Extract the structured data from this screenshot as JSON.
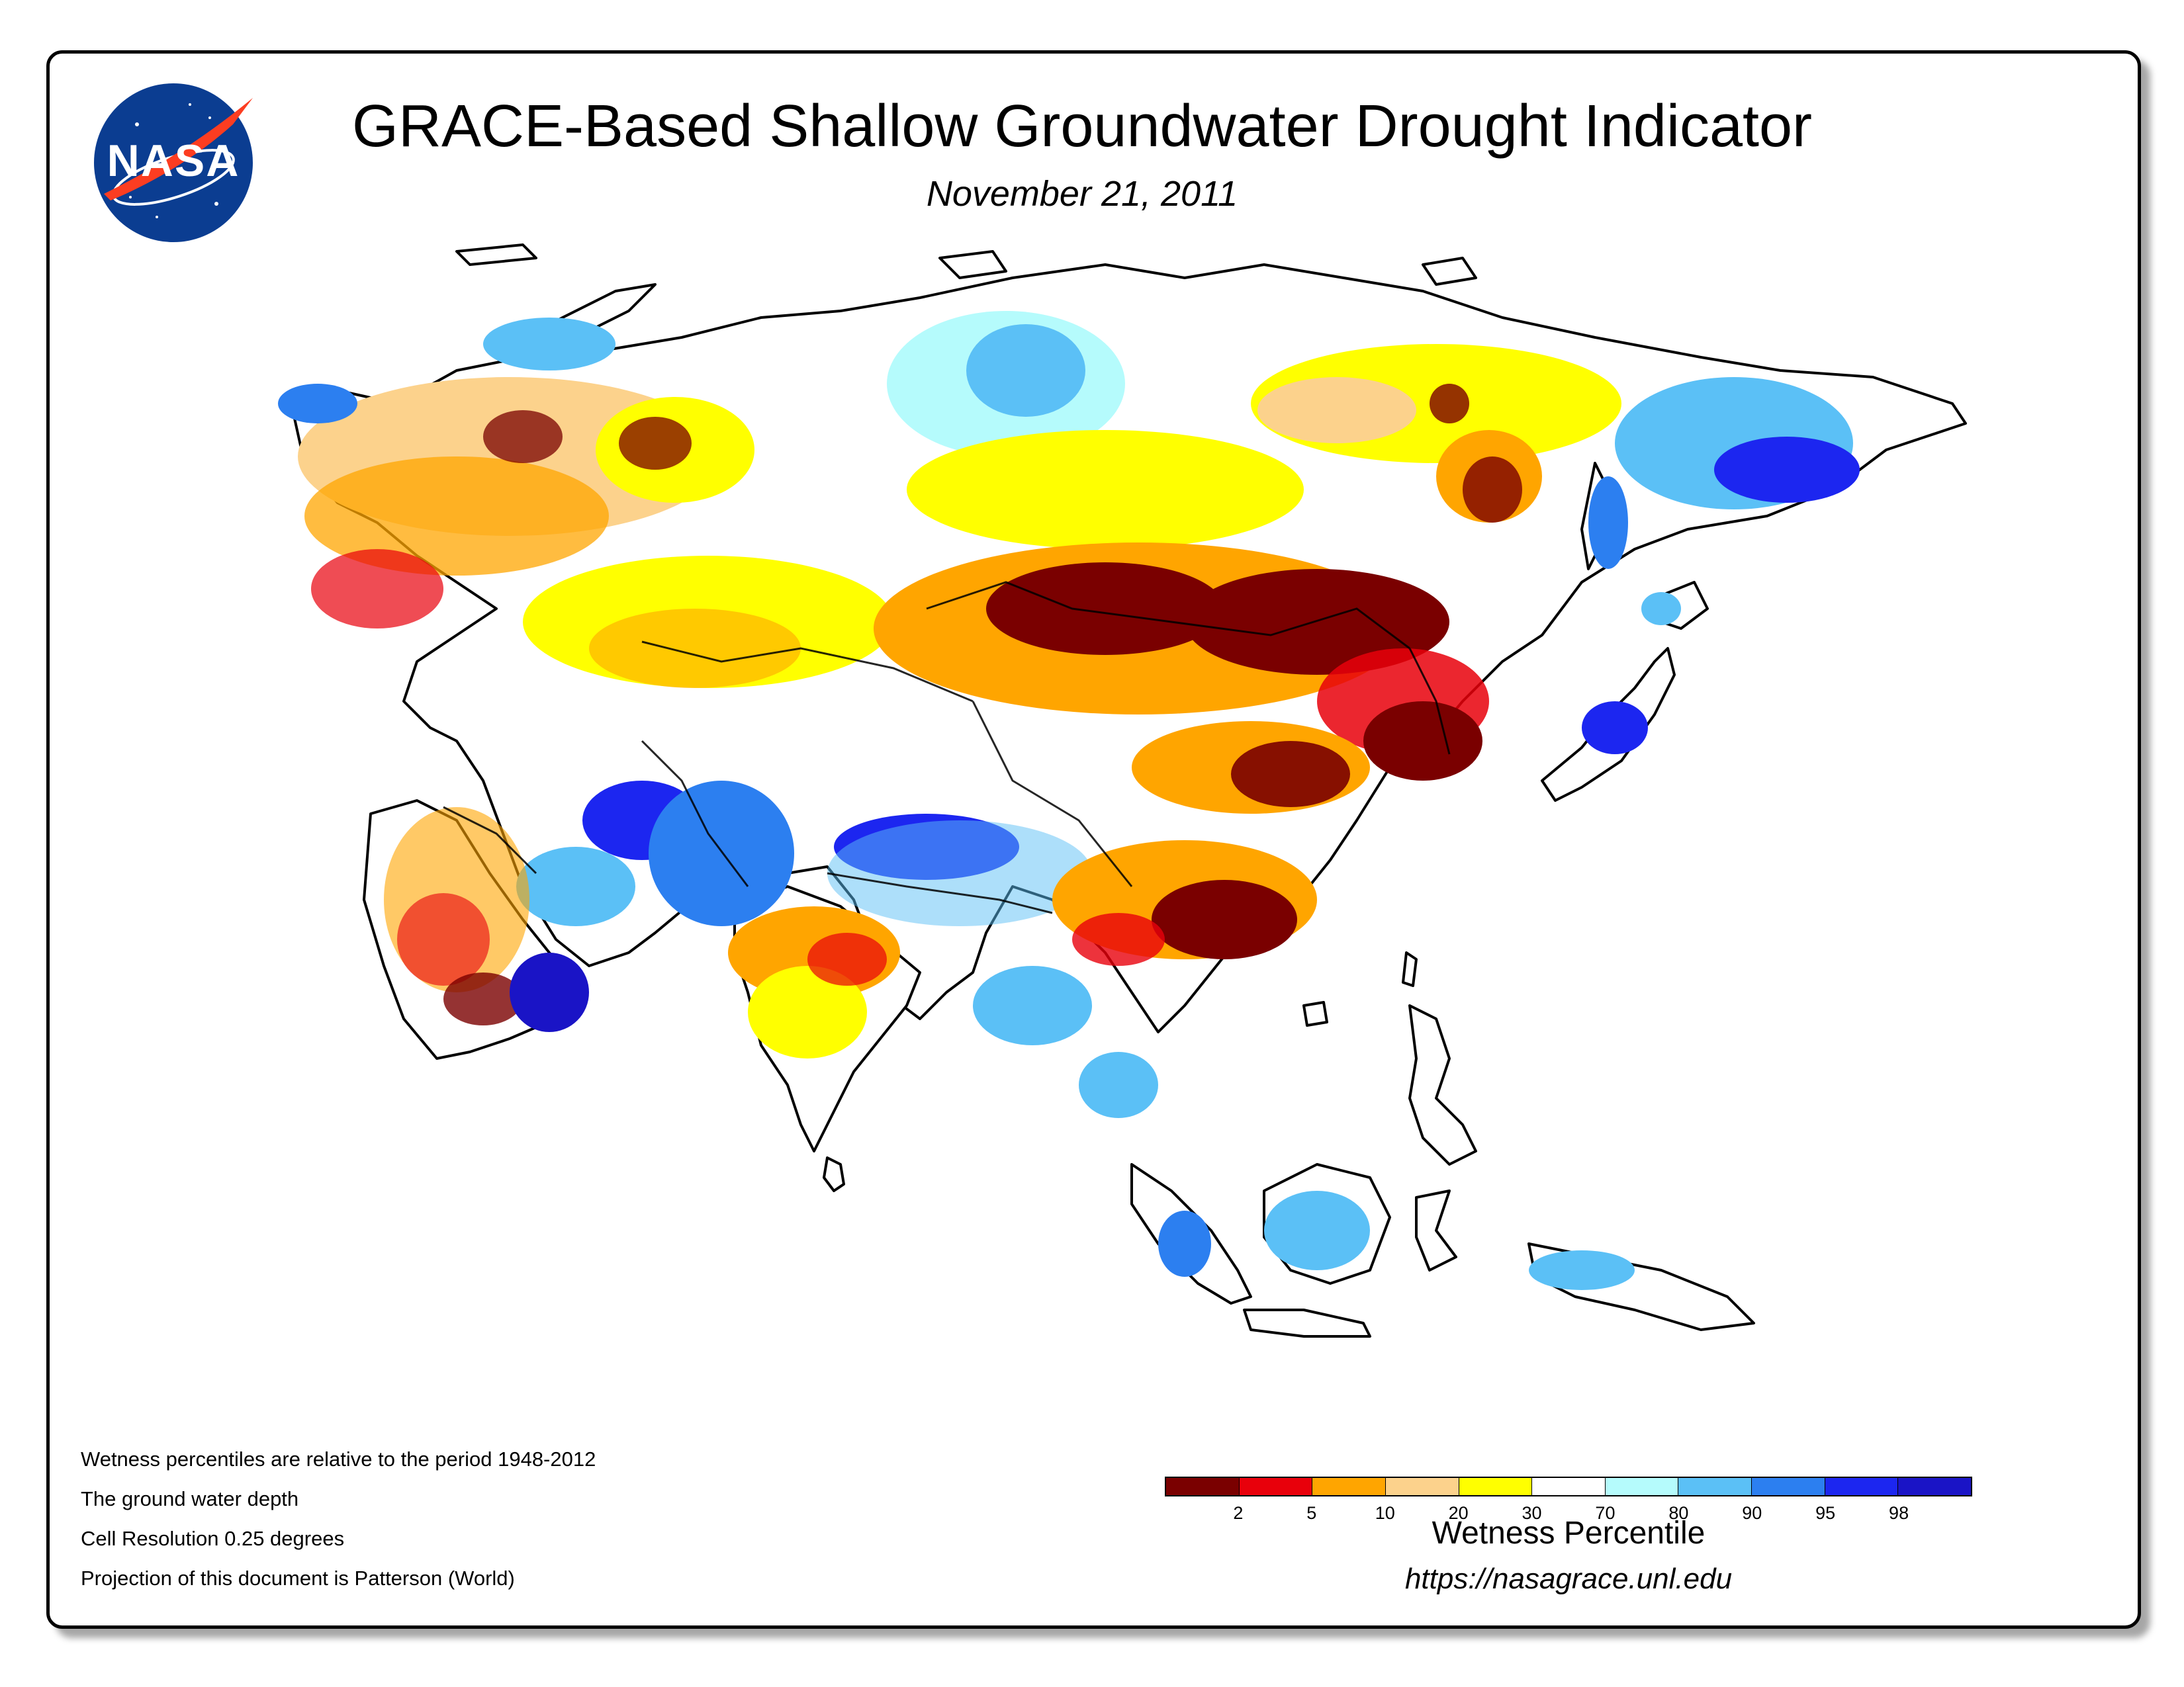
{
  "header": {
    "title": "GRACE-Based Shallow Groundwater Drought Indicator",
    "date": "November 21, 2011",
    "logo_text": "NASA"
  },
  "notes": [
    "Wetness percentiles are relative to the period 1948-2012",
    "The ground water depth",
    "Cell Resolution 0.25 degrees",
    "Projection of this document is Patterson (World)"
  ],
  "legend": {
    "title": "Wetness Percentile",
    "colors": [
      "#7a0000",
      "#e8000b",
      "#ffa500",
      "#fcd28c",
      "#ffff00",
      "#ffffff",
      "#b5fbfc",
      "#5bc0f6",
      "#2c7ff0",
      "#1c26f0",
      "#1a14c6"
    ],
    "ticks": [
      "2",
      "5",
      "10",
      "20",
      "30",
      "70",
      "80",
      "90",
      "95",
      "98"
    ]
  },
  "footer": {
    "url": "https://nasagrace.unl.edu"
  }
}
